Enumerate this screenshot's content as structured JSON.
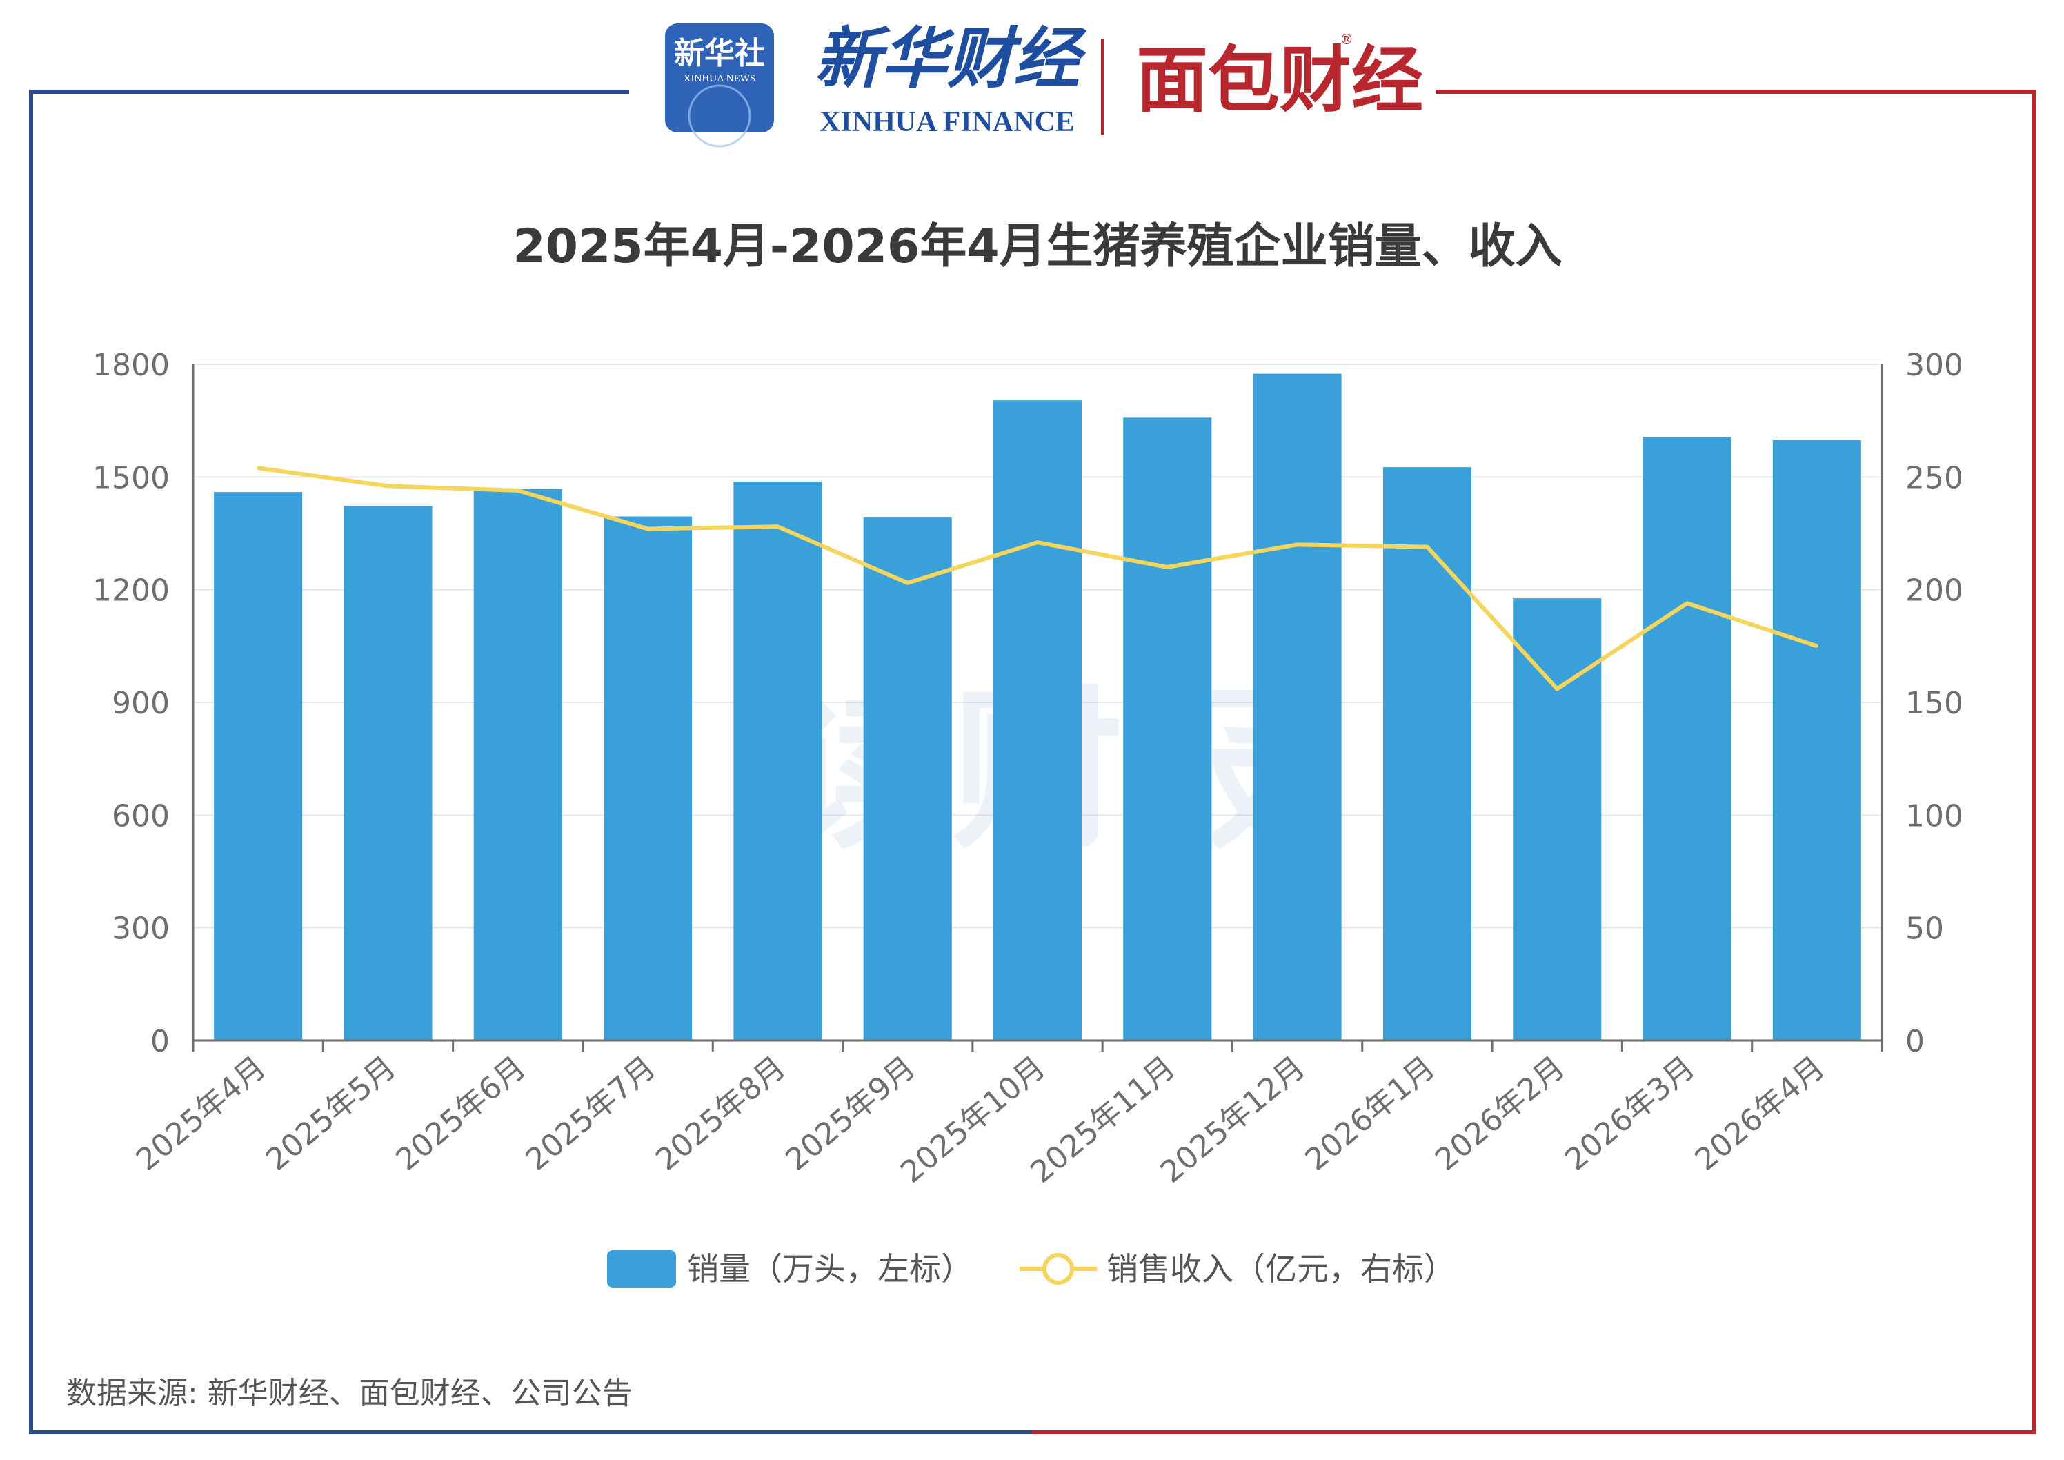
{
  "header": {
    "logo_xinhua_cn": "新华社",
    "logo_xinhua_en": "XINHUA NEWS",
    "logo_finance_cn": "新华财经",
    "logo_finance_en": "XINHUA FINANCE",
    "logo_mianbao": "面包财经",
    "registered_mark": "®"
  },
  "watermark": "读财报",
  "source_note": "数据来源: 新华财经、面包财经、公司公告",
  "colors": {
    "bar": "#3AA0DA",
    "line": "#F5D55C",
    "frame_left": "#2B4C8C",
    "frame_right": "#B8262E",
    "grid": "#E3E6EE",
    "axis_text": "#6E6E6E",
    "title": "#3A3A3A"
  },
  "chart_data": {
    "type": "bar",
    "title": "2025年4月-2026年4月生猪养殖企业销量、收入",
    "categories": [
      "2025年4月",
      "2025年5月",
      "2025年6月",
      "2025年7月",
      "2025年8月",
      "2025年9月",
      "2025年10月",
      "2025年11月",
      "2025年12月",
      "2026年1月",
      "2026年2月",
      "2026年3月",
      "2026年4月"
    ],
    "series": [
      {
        "name": "销量（万头，左标）",
        "type": "bar",
        "axis": "left",
        "values": [
          1460,
          1423,
          1468,
          1395,
          1488,
          1392,
          1704,
          1658,
          1775,
          1526,
          1177,
          1607,
          1598
        ]
      },
      {
        "name": "销售收入（亿元，右标）",
        "type": "line",
        "axis": "right",
        "values": [
          254,
          246,
          244,
          227,
          228,
          203,
          221,
          210,
          220,
          219,
          156,
          194,
          175
        ]
      }
    ],
    "y_left": {
      "min": 0,
      "max": 1800,
      "ticks": [
        "0",
        "300",
        "600",
        "900",
        "1200",
        "1500",
        "1800"
      ]
    },
    "y_right": {
      "min": 0,
      "max": 300,
      "ticks": [
        "0",
        "50",
        "100",
        "150",
        "200",
        "250",
        "300"
      ]
    },
    "grid": true,
    "legend_position": "bottom"
  }
}
